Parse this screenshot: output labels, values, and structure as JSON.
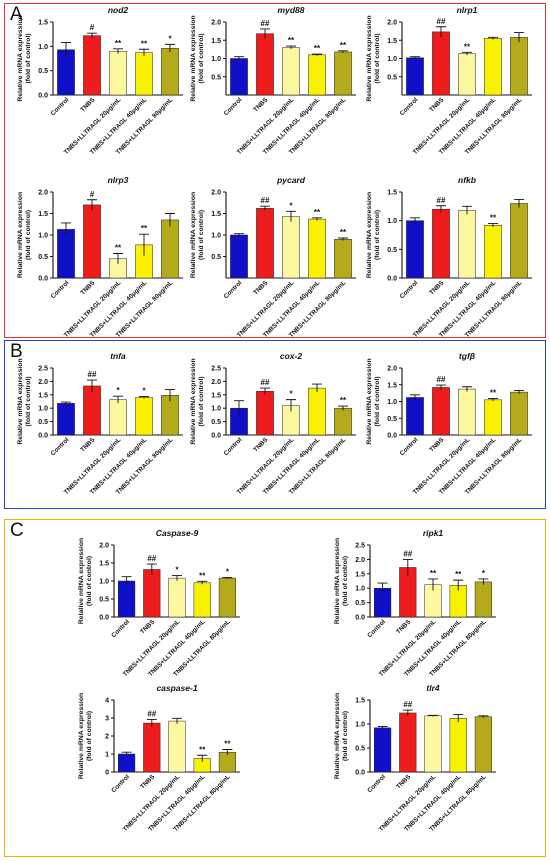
{
  "panels": [
    {
      "letter": "A",
      "charts": [
        0,
        1,
        2,
        3,
        4,
        5
      ]
    },
    {
      "letter": "B",
      "charts": [
        6,
        7,
        8
      ]
    },
    {
      "letter": "C",
      "charts": [
        9,
        10,
        11,
        12
      ]
    }
  ],
  "colors": [
    "#1010c8",
    "#ee1c1c",
    "#fdf7a0",
    "#f8f200",
    "#b5aa1a"
  ],
  "categories": [
    "Control",
    "TNBS",
    "TNBS+LLTRAGL 20μg/mL",
    "TNBS+LLTRAGL 40μg/mL",
    "TNBS+LLTRAGL 80μg/mL"
  ],
  "ylabel_line1": "Relative mRNA expression",
  "ylabel_line2": "(fold of control)",
  "chart_data": [
    {
      "type": "bar",
      "title": "nod2",
      "ylim": [
        0,
        1.5
      ],
      "yticks": [
        "0.0",
        "0.5",
        "1.0",
        "1.5"
      ],
      "tickvals": [
        0,
        0.5,
        1,
        1.5
      ],
      "values": [
        0.93,
        1.22,
        0.9,
        0.87,
        0.96
      ],
      "errors": [
        0.15,
        0.05,
        0.05,
        0.07,
        0.08
      ],
      "annotations": [
        "",
        "#",
        "**",
        "**",
        "*"
      ]
    },
    {
      "type": "bar",
      "title": "myd88",
      "ylim": [
        0,
        2.0
      ],
      "yticks": [
        "0.5",
        "1.0",
        "1.5",
        "2.0"
      ],
      "tickvals": [
        0.5,
        1,
        1.5,
        2
      ],
      "values": [
        1.0,
        1.68,
        1.3,
        1.1,
        1.18
      ],
      "errors": [
        0.05,
        0.13,
        0.04,
        0.02,
        0.03
      ],
      "annotations": [
        "",
        "##",
        "**",
        "**",
        "**"
      ]
    },
    {
      "type": "bar",
      "title": "nlrp1",
      "ylim": [
        0,
        2.0
      ],
      "yticks": [
        "0.5",
        "1.0",
        "1.5",
        "2.0"
      ],
      "tickvals": [
        0.5,
        1,
        1.5,
        2
      ],
      "values": [
        1.02,
        1.73,
        1.13,
        1.55,
        1.58
      ],
      "errors": [
        0.03,
        0.14,
        0.04,
        0.03,
        0.13
      ],
      "annotations": [
        "",
        "##",
        "**",
        "",
        ""
      ]
    },
    {
      "type": "bar",
      "title": "nlrp3",
      "ylim": [
        0,
        2.0
      ],
      "yticks": [
        "0.0",
        "0.5",
        "1.0",
        "1.5",
        "2.0"
      ],
      "tickvals": [
        0,
        0.5,
        1,
        1.5,
        2
      ],
      "values": [
        1.13,
        1.7,
        0.45,
        0.77,
        1.35
      ],
      "errors": [
        0.15,
        0.12,
        0.12,
        0.25,
        0.15
      ],
      "annotations": [
        "",
        "#",
        "**",
        "**",
        ""
      ]
    },
    {
      "type": "bar",
      "title": "pycard",
      "ylim": [
        0,
        2.0
      ],
      "yticks": [
        "0.5",
        "1.0",
        "1.5",
        "2.0"
      ],
      "tickvals": [
        0.5,
        1,
        1.5,
        2
      ],
      "values": [
        1.0,
        1.62,
        1.43,
        1.37,
        0.9
      ],
      "errors": [
        0.03,
        0.05,
        0.12,
        0.03,
        0.03
      ],
      "annotations": [
        "",
        "##",
        "*",
        "**",
        "**"
      ]
    },
    {
      "type": "bar",
      "title": "nfkb",
      "ylim": [
        0,
        1.5
      ],
      "yticks": [
        "0.0",
        "0.5",
        "1.0",
        "1.5"
      ],
      "tickvals": [
        0,
        0.5,
        1,
        1.5
      ],
      "values": [
        1.0,
        1.2,
        1.18,
        0.92,
        1.3
      ],
      "errors": [
        0.05,
        0.06,
        0.07,
        0.03,
        0.07
      ],
      "annotations": [
        "",
        "##",
        "",
        "**",
        ""
      ]
    },
    {
      "type": "bar",
      "title": "tnfa",
      "ylim": [
        0,
        2.5
      ],
      "yticks": [
        "0.0",
        "0.5",
        "1.0",
        "1.5",
        "2.0",
        "2.5"
      ],
      "tickvals": [
        0,
        0.5,
        1,
        1.5,
        2,
        2.5
      ],
      "values": [
        1.18,
        1.83,
        1.32,
        1.4,
        1.48
      ],
      "errors": [
        0.05,
        0.22,
        0.13,
        0.04,
        0.22
      ],
      "annotations": [
        "",
        "##",
        "*",
        "*",
        ""
      ]
    },
    {
      "type": "bar",
      "title": "cox-2",
      "ylim": [
        0,
        2.5
      ],
      "yticks": [
        "0.0",
        "0.5",
        "1.0",
        "1.5",
        "2.0",
        "2.5"
      ],
      "tickvals": [
        0,
        0.5,
        1,
        1.5,
        2,
        2.5
      ],
      "values": [
        1.0,
        1.63,
        1.1,
        1.75,
        1.0
      ],
      "errors": [
        0.28,
        0.12,
        0.22,
        0.15,
        0.08
      ],
      "annotations": [
        "",
        "##",
        "*",
        "",
        "**"
      ]
    },
    {
      "type": "bar",
      "title": "tgfβ",
      "ylim": [
        0,
        2.0
      ],
      "yticks": [
        "0.0",
        "0.5",
        "1.0",
        "1.5",
        "2.0"
      ],
      "tickvals": [
        0,
        0.5,
        1,
        1.5,
        2
      ],
      "values": [
        1.12,
        1.42,
        1.37,
        1.05,
        1.28
      ],
      "errors": [
        0.08,
        0.07,
        0.07,
        0.04,
        0.05
      ],
      "annotations": [
        "",
        "##",
        "",
        "**",
        ""
      ]
    },
    {
      "type": "bar",
      "title": "Caspase-9",
      "ylim": [
        0,
        2.0
      ],
      "yticks": [
        "0.0",
        "0.5",
        "1.0",
        "1.5",
        "2.0"
      ],
      "tickvals": [
        0,
        0.5,
        1,
        1.5,
        2
      ],
      "values": [
        1.0,
        1.32,
        1.08,
        0.95,
        1.08
      ],
      "errors": [
        0.12,
        0.15,
        0.07,
        0.04,
        0.02
      ],
      "annotations": [
        "",
        "##",
        "*",
        "**",
        "*"
      ]
    },
    {
      "type": "bar",
      "title": "ripk1",
      "ylim": [
        0,
        2.5
      ],
      "yticks": [
        "0.0",
        "0.5",
        "1.0",
        "1.5",
        "2.0",
        "2.5"
      ],
      "tickvals": [
        0,
        0.5,
        1,
        1.5,
        2,
        2.5
      ],
      "values": [
        1.0,
        1.72,
        1.12,
        1.1,
        1.22
      ],
      "errors": [
        0.18,
        0.28,
        0.2,
        0.18,
        0.1
      ],
      "annotations": [
        "",
        "##",
        "**",
        "**",
        "*"
      ]
    },
    {
      "type": "bar",
      "title": "caspase-1",
      "ylim": [
        0,
        4
      ],
      "yticks": [
        "0",
        "1",
        "2",
        "3",
        "4"
      ],
      "tickvals": [
        0,
        1,
        2,
        3,
        4
      ],
      "values": [
        1.0,
        2.72,
        2.83,
        0.75,
        1.1
      ],
      "errors": [
        0.1,
        0.2,
        0.15,
        0.18,
        0.15
      ],
      "annotations": [
        "",
        "##",
        "",
        "**",
        "**"
      ]
    },
    {
      "type": "bar",
      "title": "tlr4",
      "ylim": [
        0,
        1.5
      ],
      "yticks": [
        "0.0",
        "0.5",
        "1.0",
        "1.5"
      ],
      "tickvals": [
        0,
        0.5,
        1,
        1.5
      ],
      "values": [
        0.92,
        1.23,
        1.17,
        1.12,
        1.15
      ],
      "errors": [
        0.03,
        0.06,
        0.01,
        0.08,
        0.02
      ],
      "annotations": [
        "",
        "##",
        "",
        "",
        ""
      ]
    }
  ]
}
